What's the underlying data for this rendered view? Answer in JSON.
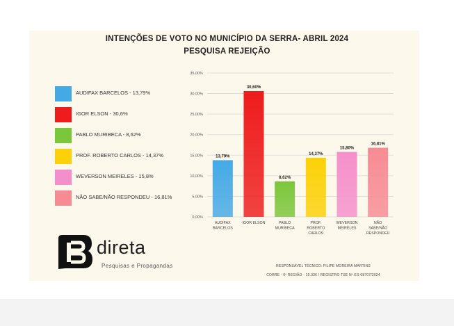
{
  "header": {
    "title": "INTENÇÕES DE VOTO NO MUNICÍPIO DA SERRA- ABRIL 2024",
    "subtitle": "PESQUISA REJEIÇÃO"
  },
  "legend": [
    {
      "label": "AUDIFAX BARCELOS - 13,79%",
      "color": "#45a9e6"
    },
    {
      "label": "IGOR ELSON - 30,6%",
      "color": "#ee1c1c"
    },
    {
      "label": "PABLO MURIBECA - 8,62%",
      "color": "#7cc63b"
    },
    {
      "label": "PROF. ROBERTO CARLOS - 14,37%",
      "color": "#fcd107"
    },
    {
      "label": "WEVERSON MEIRELES - 15,8%",
      "color": "#f58fcb"
    },
    {
      "label": "NÃO SABE/NÃO RESPONDEU - 16,81%",
      "color": "#f78b94"
    }
  ],
  "chart_data": {
    "type": "bar",
    "categories": [
      [
        "AUDIFAX",
        "BARCELOS"
      ],
      [
        "IGOR ELSON"
      ],
      [
        "PABLO",
        "MURIBECA"
      ],
      [
        "PROF.",
        "ROBERTO",
        "CARLOS"
      ],
      [
        "WEVERSON",
        "MEIRELES"
      ],
      [
        "NÃO",
        "SABE/NÃO",
        "RESPONDEU"
      ]
    ],
    "values": [
      13.79,
      30.6,
      8.62,
      14.37,
      15.8,
      16.81
    ],
    "value_labels": [
      "13,79%",
      "30,60%",
      "8,62%",
      "14,37%",
      "15,80%",
      "16,81%"
    ],
    "colors": [
      "#45a9e6",
      "#ee1c1c",
      "#7cc63b",
      "#fcd107",
      "#f58fcb",
      "#f78b94"
    ],
    "yticks": [
      0,
      5,
      10,
      15,
      20,
      25,
      30,
      35
    ],
    "ytick_labels": [
      "0,00%",
      "5,00%",
      "10,00%",
      "15,00%",
      "20,00%",
      "25,00%",
      "30,00%",
      "35,00%"
    ],
    "ylim": [
      0,
      35
    ],
    "grid": true,
    "legend_position": "left",
    "title": "INTENÇÕES DE VOTO NO MUNICÍPIO DA SERRA- ABRIL 2024",
    "subtitle": "PESQUISA REJEIÇÃO"
  },
  "logo": {
    "name": "direta",
    "tagline": "Pesquisas e Propagandas",
    "icon": "b-speech-bubble-logo"
  },
  "footer": {
    "line1": "RESPONSÁVEL TÉCNICO: FILIPE MOREIRA MARTINS",
    "line2": "CORRE - 6º REGIÃO - 10.336 / REGISTRO TSE Nº ES-08707/2024"
  }
}
